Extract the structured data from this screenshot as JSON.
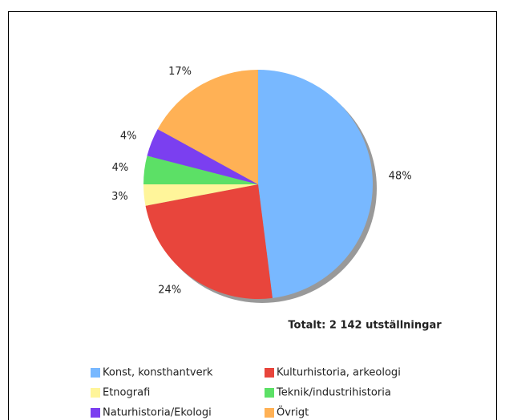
{
  "chart_data": {
    "type": "pie",
    "categories": [
      "Konst, konsthantverk",
      "Kulturhistoria, arkeologi",
      "Etnografi",
      "Teknik/industrihistoria",
      "Naturhistoria/Ekologi",
      "Övrigt"
    ],
    "values": [
      48,
      24,
      3,
      4,
      4,
      17
    ],
    "value_labels": [
      "48%",
      "24%",
      "3%",
      "4%",
      "4%",
      "17%"
    ],
    "colors": [
      "#78b8ff",
      "#e8453c",
      "#fff59a",
      "#5ce066",
      "#7b3ff0",
      "#ffb155"
    ],
    "annotation": "Totalt: 2 142 utställningar",
    "legend": "bottom"
  }
}
